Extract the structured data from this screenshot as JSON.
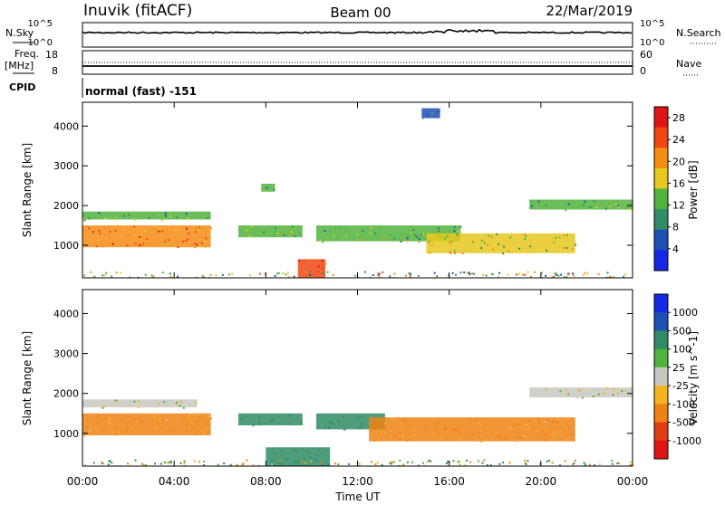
{
  "header": {
    "station": "Inuvik (fitACF)",
    "beam": "Beam 00",
    "date": "22/Mar/2019"
  },
  "status": {
    "nsky_label": "N.Sky",
    "nsearch_label": "N.Search",
    "freq_label": "Freq.",
    "freq_unit": "[MHz]",
    "cpid_label": "CPID",
    "nave_label": "Nave",
    "nsky_ticks": [
      "10^5",
      "10^0"
    ],
    "nsearch_ticks": [
      "10^5",
      "10^0"
    ],
    "freq_ticks": [
      "18",
      "8"
    ],
    "nave_ticks": [
      "60",
      "0"
    ],
    "cpid_text": "normal (fast) -151"
  },
  "chart_data": [
    {
      "type": "heatmap",
      "title": "",
      "xlabel": "Time UT",
      "ylabel": "Slant Range [km]",
      "xticks": [
        "00:00",
        "04:00",
        "08:00",
        "12:00",
        "16:00",
        "20:00",
        "00:00"
      ],
      "yticks": [
        "1000",
        "2000",
        "3000",
        "4000"
      ],
      "xlim": [
        0,
        24
      ],
      "ylim": [
        180,
        4600
      ],
      "colorbar": {
        "label": "Power [dB]",
        "range": [
          0,
          30
        ],
        "ticks": [
          "4",
          "8",
          "12",
          "16",
          "20",
          "24",
          "28"
        ],
        "colors": [
          "#1428e6",
          "#1e50b4",
          "#2f8c64",
          "#50b43c",
          "#e6c81e",
          "#f58c14",
          "#f04614",
          "#e11414"
        ]
      },
      "echo_bands": [
        {
          "start_h": 0.0,
          "end_h": 5.6,
          "range_km_start": 950,
          "range_km_end": 1500,
          "value": 22
        },
        {
          "start_h": 0.0,
          "end_h": 5.6,
          "range_km_start": 1650,
          "range_km_end": 1850,
          "value": 12
        },
        {
          "start_h": 6.8,
          "end_h": 9.6,
          "range_km_start": 1200,
          "range_km_end": 1500,
          "value": 14
        },
        {
          "start_h": 7.8,
          "end_h": 8.4,
          "range_km_start": 2350,
          "range_km_end": 2550,
          "value": 12
        },
        {
          "start_h": 10.2,
          "end_h": 16.5,
          "range_km_start": 1100,
          "range_km_end": 1500,
          "value": 14
        },
        {
          "start_h": 15.0,
          "end_h": 21.5,
          "range_km_start": 800,
          "range_km_end": 1300,
          "value": 16
        },
        {
          "start_h": 19.5,
          "end_h": 24.0,
          "range_km_start": 1900,
          "range_km_end": 2150,
          "value": 12
        },
        {
          "start_h": 9.4,
          "end_h": 10.6,
          "range_km_start": 180,
          "range_km_end": 650,
          "value": 26
        },
        {
          "start_h": 14.8,
          "end_h": 15.6,
          "range_km_start": 4200,
          "range_km_end": 4450,
          "value": 6
        }
      ]
    },
    {
      "type": "heatmap",
      "title": "",
      "xlabel": "Time UT",
      "ylabel": "Slant Range [km]",
      "xticks": [
        "00:00",
        "04:00",
        "08:00",
        "12:00",
        "16:00",
        "20:00",
        "00:00"
      ],
      "yticks": [
        "1000",
        "2000",
        "3000",
        "4000"
      ],
      "xlim": [
        0,
        24
      ],
      "ylim": [
        180,
        4600
      ],
      "colorbar": {
        "label": "Velocity [m s^-1]",
        "ticks": [
          "1000",
          "500",
          "100",
          "25",
          "-25",
          "-100",
          "-500",
          "-1000"
        ],
        "colors": [
          "#1428e6",
          "#1e50b4",
          "#2f8c64",
          "#50b43c",
          "#c8c8c0",
          "#f5b41e",
          "#f08214",
          "#e13c14",
          "#e11414"
        ]
      },
      "echo_bands": [
        {
          "start_h": 0.0,
          "end_h": 5.6,
          "range_km_start": 950,
          "range_km_end": 1500,
          "value": -120
        },
        {
          "start_h": 0.0,
          "end_h": 5.0,
          "range_km_start": 1650,
          "range_km_end": 1850,
          "value": 0
        },
        {
          "start_h": 6.8,
          "end_h": 9.6,
          "range_km_start": 1200,
          "range_km_end": 1500,
          "value": 150
        },
        {
          "start_h": 10.2,
          "end_h": 13.2,
          "range_km_start": 1100,
          "range_km_end": 1500,
          "value": 150
        },
        {
          "start_h": 12.5,
          "end_h": 21.5,
          "range_km_start": 800,
          "range_km_end": 1400,
          "value": -120
        },
        {
          "start_h": 19.5,
          "end_h": 24.0,
          "range_km_start": 1900,
          "range_km_end": 2150,
          "value": 0
        },
        {
          "start_h": 8.0,
          "end_h": 10.8,
          "range_km_start": 180,
          "range_km_end": 650,
          "value": 300
        }
      ]
    }
  ]
}
